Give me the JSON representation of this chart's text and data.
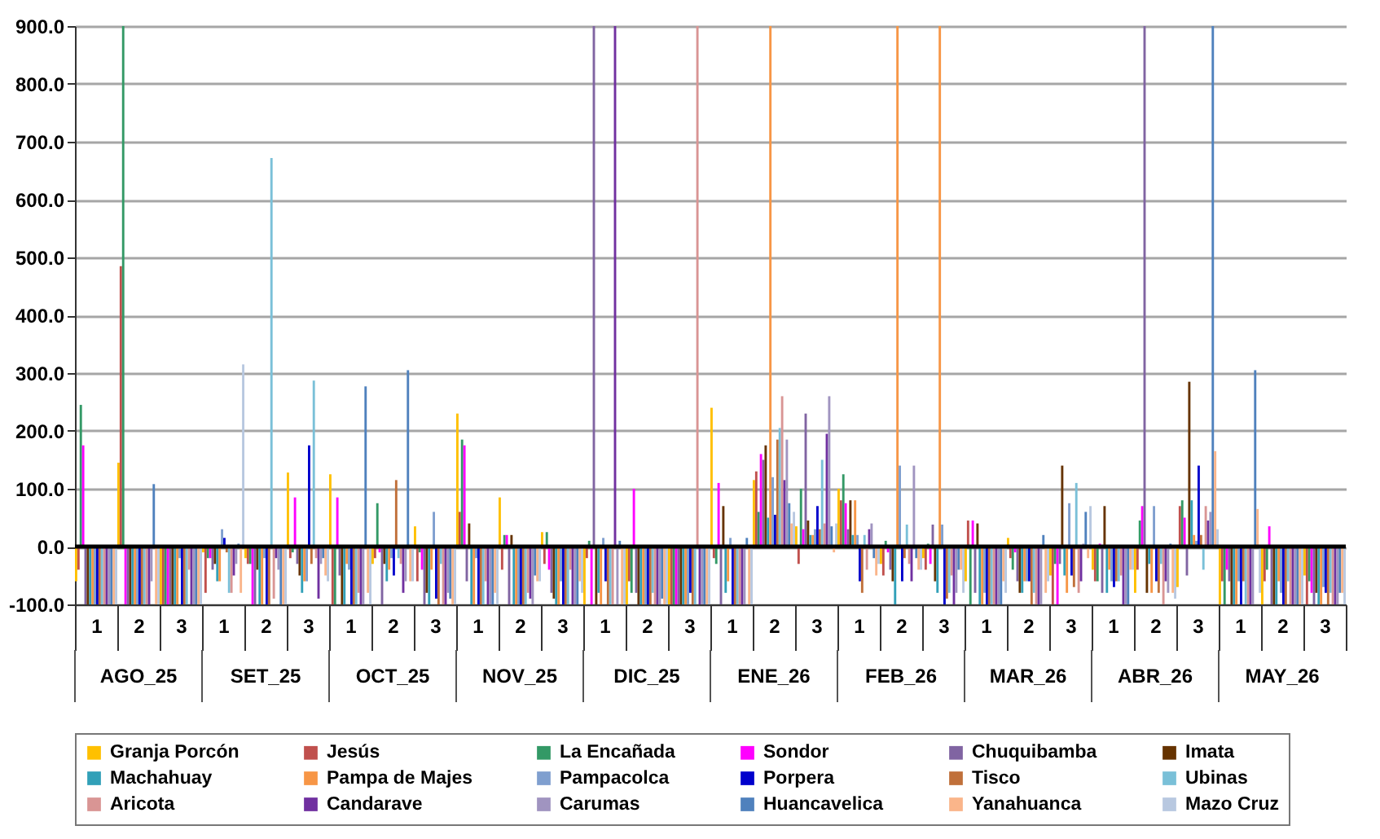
{
  "chart_data": {
    "type": "bar",
    "categories": [
      "1",
      "2",
      "3",
      "1",
      "2",
      "3",
      "1",
      "2",
      "3",
      "1",
      "2",
      "3",
      "1",
      "2",
      "3",
      "1",
      "2",
      "3",
      "1",
      "2",
      "3",
      "1",
      "2",
      "3",
      "1",
      "2",
      "3",
      "1",
      "2",
      "3"
    ],
    "annotations": [
      "AGO_25",
      "SET_25",
      "OCT_25",
      "NOV_25",
      "DIC_25",
      "ENE_26",
      "FEB_26",
      "MAR_26",
      "ABR_26",
      "MAY_26"
    ],
    "ylim": [
      -100,
      900
    ],
    "yticks": [
      {
        "value": -100,
        "label": "-100.0"
      },
      {
        "value": 0,
        "label": "0.0"
      },
      {
        "value": 100,
        "label": "100.0"
      },
      {
        "value": 200,
        "label": "200.0"
      },
      {
        "value": 300,
        "label": "300.0"
      },
      {
        "value": 400,
        "label": "400.0"
      },
      {
        "value": 500,
        "label": "500.0"
      },
      {
        "value": 600,
        "label": "600.0"
      },
      {
        "value": 700,
        "label": "700.0"
      },
      {
        "value": 800,
        "label": "800.0"
      },
      {
        "value": 900,
        "label": "900.0"
      }
    ],
    "grid": "y",
    "legend": "bottom",
    "ref_lines": [
      {
        "axis": "y",
        "value": 0,
        "color": "#000000"
      }
    ],
    "series": [
      {
        "name": "Granja Porcón",
        "color": "#ffc000",
        "values": [
          -60,
          145,
          -100,
          -10,
          -20,
          128,
          125,
          -30,
          35,
          230,
          85,
          25,
          -100,
          -100,
          -100,
          240,
          115,
          35,
          100,
          -30,
          -20,
          -60,
          15,
          -50,
          -40,
          -80,
          -70,
          -100,
          -100,
          -50
        ]
      },
      {
        "name": "Jesús",
        "color": "#c0504d",
        "values": [
          -40,
          485,
          -100,
          -80,
          -30,
          -20,
          -100,
          -20,
          -60,
          60,
          -40,
          -30,
          -20,
          -60,
          -100,
          -20,
          130,
          -30,
          80,
          -50,
          -40,
          45,
          -20,
          -100,
          -60,
          -40,
          70,
          -60,
          -60,
          -100
        ]
      },
      {
        "name": "La Encañada",
        "color": "#339966",
        "values": [
          245,
          900,
          -100,
          -20,
          -30,
          -10,
          -100,
          75,
          -10,
          185,
          20,
          25,
          10,
          -80,
          -100,
          -30,
          60,
          100,
          125,
          10,
          5,
          -100,
          -40,
          -30,
          -60,
          45,
          80,
          -100,
          -40,
          -60
        ]
      },
      {
        "name": "Sondor",
        "color": "#ff00ff",
        "values": [
          175,
          -100,
          -100,
          -20,
          -100,
          85,
          85,
          -10,
          -40,
          175,
          20,
          -40,
          -100,
          100,
          -100,
          110,
          160,
          30,
          75,
          -10,
          -30,
          45,
          -10,
          -100,
          5,
          70,
          50,
          -40,
          35,
          -80
        ]
      },
      {
        "name": "Chuquibamba",
        "color": "#8064a2",
        "values": [
          -100,
          -100,
          -100,
          -40,
          -100,
          -30,
          -50,
          -100,
          -100,
          -60,
          -100,
          -80,
          900,
          -80,
          -100,
          -100,
          150,
          230,
          30,
          -40,
          38,
          -80,
          -60,
          -30,
          -80,
          900,
          -50,
          -60,
          -100,
          -100
        ]
      },
      {
        "name": "Imata",
        "color": "#663300",
        "values": [
          -100,
          -100,
          -100,
          -30,
          -40,
          -50,
          -100,
          -30,
          -80,
          40,
          20,
          -90,
          -100,
          -100,
          -100,
          70,
          175,
          45,
          80,
          -60,
          -60,
          40,
          -80,
          140,
          70,
          -80,
          285,
          -100,
          -100,
          -80
        ]
      },
      {
        "name": "Machahuay",
        "color": "#31a0b8",
        "values": [
          -100,
          -100,
          -100,
          -60,
          -100,
          -80,
          -100,
          -60,
          -100,
          -100,
          -100,
          -100,
          -80,
          -100,
          -100,
          -80,
          50,
          20,
          20,
          -100,
          -80,
          -100,
          -80,
          -50,
          -80,
          -30,
          80,
          -100,
          -100,
          -100
        ]
      },
      {
        "name": "Pampa de Majes",
        "color": "#f79646",
        "values": [
          -100,
          -100,
          -100,
          -60,
          -100,
          -60,
          -30,
          -40,
          -40,
          -100,
          -100,
          -100,
          -100,
          -100,
          -100,
          -60,
          900,
          20,
          80,
          900,
          900,
          -100,
          -60,
          -80,
          -40,
          -80,
          20,
          -100,
          -60,
          -100
        ]
      },
      {
        "name": "Pampacolca",
        "color": "#7f9fcf",
        "values": [
          -100,
          -100,
          -20,
          30,
          -20,
          -60,
          -40,
          -20,
          60,
          -20,
          -100,
          -60,
          15,
          -100,
          -100,
          15,
          120,
          30,
          20,
          140,
          38,
          -80,
          -60,
          75,
          -60,
          70,
          10,
          -60,
          -80,
          -70
        ]
      },
      {
        "name": "Porpera",
        "color": "#0000cc",
        "values": [
          -100,
          -100,
          -100,
          15,
          -100,
          175,
          -100,
          -50,
          -90,
          -100,
          -100,
          -100,
          -60,
          -100,
          -80,
          -100,
          55,
          70,
          -60,
          -60,
          -100,
          -100,
          -60,
          -50,
          -70,
          -60,
          140,
          -100,
          -100,
          -80
        ]
      },
      {
        "name": "Tisco",
        "color": "#c0703a",
        "values": [
          -100,
          -100,
          -100,
          -10,
          -100,
          -30,
          -100,
          115,
          -100,
          -100,
          -100,
          -100,
          -100,
          -100,
          -100,
          -100,
          185,
          30,
          -80,
          -20,
          -90,
          -100,
          -100,
          -70,
          -60,
          -80,
          20,
          -60,
          -100,
          -100
        ]
      },
      {
        "name": "Ubinas",
        "color": "#7ac0d8",
        "values": [
          -100,
          -100,
          -100,
          -80,
          672,
          287,
          -100,
          -20,
          -30,
          -100,
          -100,
          -100,
          -100,
          -80,
          -100,
          -100,
          205,
          150,
          20,
          38,
          -80,
          -100,
          -80,
          110,
          -60,
          -30,
          -40,
          -100,
          -60,
          -80
        ]
      },
      {
        "name": "Aricota",
        "color": "#d99594",
        "values": [
          -100,
          -100,
          -40,
          -80,
          -90,
          -20,
          -80,
          -30,
          -100,
          -60,
          -80,
          -40,
          -100,
          -100,
          900,
          -100,
          260,
          40,
          -40,
          -30,
          -50,
          -100,
          -100,
          -80,
          -50,
          -100,
          70,
          -100,
          -100,
          -100
        ]
      },
      {
        "name": "Candarave",
        "color": "#7030a0",
        "values": [
          -100,
          -100,
          -100,
          -50,
          -20,
          -90,
          -100,
          -80,
          -100,
          -100,
          -90,
          -100,
          900,
          -100,
          -100,
          -100,
          115,
          195,
          30,
          -60,
          -100,
          -100,
          -100,
          -60,
          -100,
          -60,
          45,
          -100,
          -100,
          -100
        ]
      },
      {
        "name": "Carumas",
        "color": "#a094c0",
        "values": [
          -100,
          -60,
          -100,
          -30,
          -40,
          -30,
          -100,
          -60,
          -80,
          -100,
          -100,
          -100,
          -100,
          -100,
          -100,
          -100,
          185,
          260,
          40,
          140,
          -80,
          -100,
          -100,
          5,
          -100,
          -80,
          60,
          -100,
          -100,
          -100
        ]
      },
      {
        "name": "Huancavelica",
        "color": "#4f81bd",
        "values": [
          -100,
          108,
          -100,
          5,
          -100,
          -20,
          277,
          305,
          -90,
          -100,
          -50,
          -100,
          10,
          -90,
          -100,
          15,
          75,
          35,
          -20,
          -20,
          -40,
          -100,
          20,
          60,
          -100,
          5,
          900,
          305,
          -100,
          -80
        ]
      },
      {
        "name": "Yanahuanca",
        "color": "#fab58a",
        "values": [
          -100,
          -100,
          -100,
          -80,
          -100,
          -50,
          -80,
          -60,
          -100,
          -80,
          -60,
          -60,
          -100,
          -100,
          -100,
          -100,
          40,
          -10,
          -50,
          -40,
          -40,
          -60,
          -80,
          -20,
          -40,
          -80,
          165,
          65,
          -100,
          -80
        ]
      },
      {
        "name": "Mazo Cruz",
        "color": "#b8c8e0",
        "values": [
          -100,
          -100,
          -100,
          315,
          -100,
          -60,
          -100,
          -60,
          -100,
          -100,
          -60,
          -80,
          -100,
          -100,
          -100,
          -100,
          60,
          40,
          -30,
          -40,
          -80,
          -80,
          -60,
          70,
          -40,
          -90,
          30,
          -80,
          -100,
          -100
        ]
      }
    ]
  }
}
